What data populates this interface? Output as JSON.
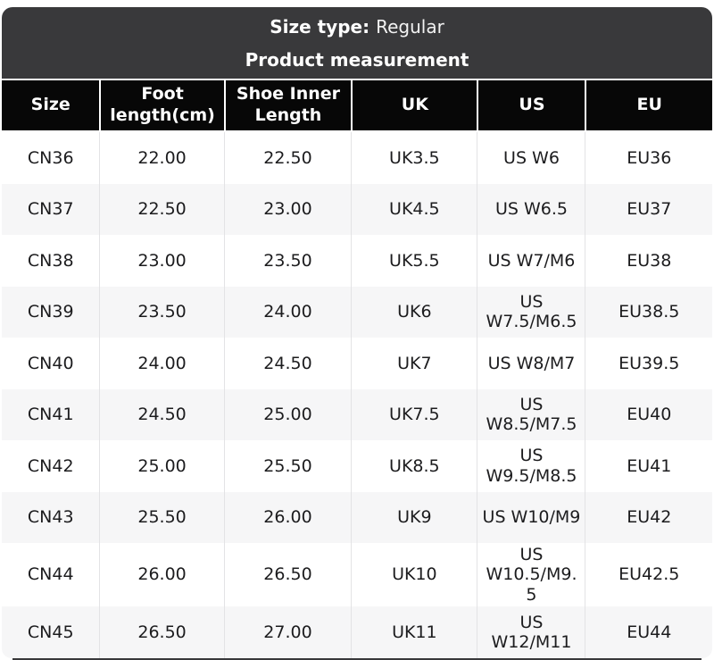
{
  "banner": {
    "size_type_label": "Size type:",
    "size_type_value": "Regular",
    "subtitle": "Product measurement"
  },
  "table": {
    "columns": [
      "Size",
      "Foot length(cm)",
      "Shoe Inner Length",
      "UK",
      "US",
      "EU"
    ],
    "rows": [
      [
        "CN36",
        "22.00",
        "22.50",
        "UK3.5",
        "US W6",
        "EU36"
      ],
      [
        "CN37",
        "22.50",
        "23.00",
        "UK4.5",
        "US W6.5",
        "EU37"
      ],
      [
        "CN38",
        "23.00",
        "23.50",
        "UK5.5",
        "US W7/M6",
        "EU38"
      ],
      [
        "CN39",
        "23.50",
        "24.00",
        "UK6",
        "US W7.5/M6.5",
        "EU38.5"
      ],
      [
        "CN40",
        "24.00",
        "24.50",
        "UK7",
        "US W8/M7",
        "EU39.5"
      ],
      [
        "CN41",
        "24.50",
        "25.00",
        "UK7.5",
        "US W8.5/M7.5",
        "EU40"
      ],
      [
        "CN42",
        "25.00",
        "25.50",
        "UK8.5",
        "US W9.5/M8.5",
        "EU41"
      ],
      [
        "CN43",
        "25.50",
        "26.00",
        "UK9",
        "US W10/M9",
        "EU42"
      ],
      [
        "CN44",
        "26.00",
        "26.50",
        "UK10",
        "US W10.5/M9.5",
        "EU42.5"
      ],
      [
        "CN45",
        "26.50",
        "27.00",
        "UK11",
        "US W12/M11",
        "EU44"
      ]
    ]
  },
  "colors": {
    "banner_bg": "#39393b",
    "header_bg": "#070707",
    "header_text": "#ffffff",
    "row_alt_bg": "#f6f6f7",
    "cell_border": "#e3e3e5",
    "cell_text": "#1c1c1e"
  }
}
